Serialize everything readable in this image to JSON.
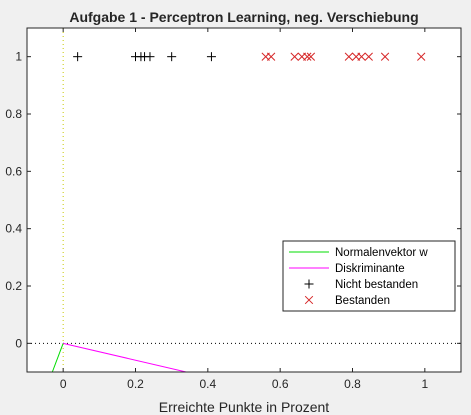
{
  "chart_data": {
    "type": "scatter",
    "title": "Aufgabe 1 - Perceptron Learning, neg. Verschiebung",
    "xlabel": "Erreichte Punkte in Prozent",
    "ylabel": "",
    "xlim": [
      -0.1,
      1.1
    ],
    "ylim": [
      -0.1,
      1.1
    ],
    "xticks": [
      0,
      0.2,
      0.4,
      0.6,
      0.8,
      1
    ],
    "yticks": [
      0,
      0.2,
      0.4,
      0.6,
      0.8,
      1
    ],
    "xtick_labels": [
      "0",
      "0.2",
      "0.4",
      "0.6",
      "0.8",
      "1"
    ],
    "ytick_labels": [
      "0",
      "0.2",
      "0.4",
      "0.6",
      "0.8",
      "1"
    ],
    "grid": false,
    "legend_position": "lower-right",
    "reference_lines": [
      {
        "orientation": "horizontal",
        "value": 0,
        "color": "#000000",
        "style": "dotted"
      },
      {
        "orientation": "vertical",
        "value": 0,
        "color": "#c8c800",
        "style": "dotted"
      }
    ],
    "series": [
      {
        "name": "Normalenvektor w",
        "kind": "line",
        "color": "#00dd00",
        "x": [
          0,
          -0.03
        ],
        "y": [
          0,
          -0.1
        ]
      },
      {
        "name": "Diskriminante",
        "kind": "line",
        "color": "#ff00ff",
        "x": [
          0,
          0.34
        ],
        "y": [
          0,
          -0.1
        ]
      },
      {
        "name": "Nicht bestanden",
        "kind": "marker",
        "marker": "plus",
        "color": "#000000",
        "x": [
          0.04,
          0.2,
          0.215,
          0.225,
          0.24,
          0.3,
          0.41
        ],
        "y": [
          1,
          1,
          1,
          1,
          1,
          1,
          1
        ]
      },
      {
        "name": "Bestanden",
        "kind": "marker",
        "marker": "cross",
        "color": "#d62728",
        "x": [
          0.56,
          0.575,
          0.64,
          0.66,
          0.675,
          0.685,
          0.79,
          0.81,
          0.825,
          0.845,
          0.89,
          0.99
        ],
        "y": [
          1,
          1,
          1,
          1,
          1,
          1,
          1,
          1,
          1,
          1,
          1,
          1
        ]
      }
    ]
  }
}
